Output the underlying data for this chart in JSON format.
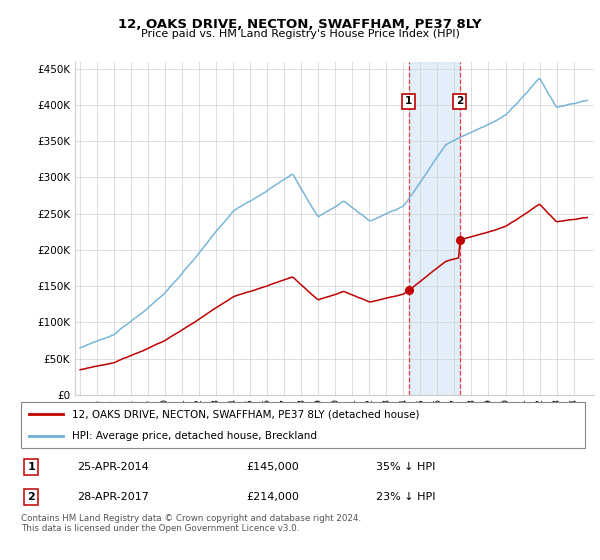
{
  "title": "12, OAKS DRIVE, NECTON, SWAFFHAM, PE37 8LY",
  "subtitle": "Price paid vs. HM Land Registry's House Price Index (HPI)",
  "legend_line1": "12, OAKS DRIVE, NECTON, SWAFFHAM, PE37 8LY (detached house)",
  "legend_line2": "HPI: Average price, detached house, Breckland",
  "transaction1_date": "25-APR-2014",
  "transaction1_price": "£145,000",
  "transaction1_hpi": "35% ↓ HPI",
  "transaction2_date": "28-APR-2017",
  "transaction2_price": "£214,000",
  "transaction2_hpi": "23% ↓ HPI",
  "footnote": "Contains HM Land Registry data © Crown copyright and database right 2024.\nThis data is licensed under the Open Government Licence v3.0.",
  "hpi_color": "#6baed6",
  "price_color": "#c00000",
  "vline_color": "#e84040",
  "shade_color": "#d0e4f5",
  "ylim": [
    0,
    460000
  ],
  "yticks": [
    0,
    50000,
    100000,
    150000,
    200000,
    250000,
    300000,
    350000,
    400000,
    450000
  ],
  "ytick_labels": [
    "£0",
    "£50K",
    "£100K",
    "£150K",
    "£200K",
    "£250K",
    "£300K",
    "£350K",
    "£400K",
    "£450K"
  ],
  "transaction1_x": 2014.32,
  "transaction1_y": 145000,
  "transaction2_x": 2017.32,
  "transaction2_y": 214000,
  "shade_x1": 2014.32,
  "shade_x2": 2017.32,
  "xlim_left": 1994.7,
  "xlim_right": 2025.2
}
